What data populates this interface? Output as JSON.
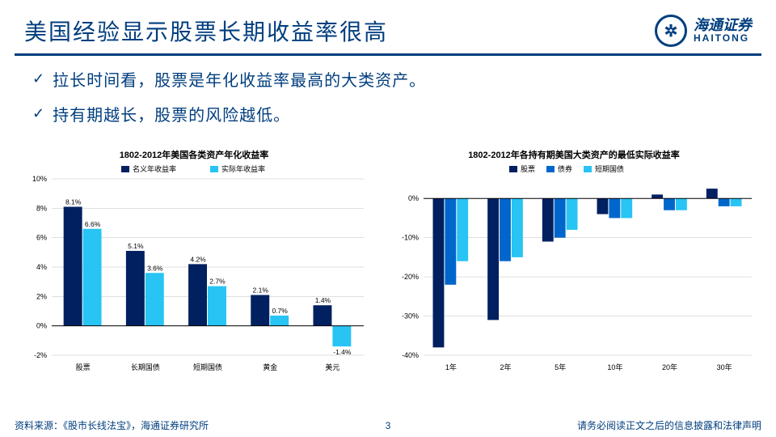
{
  "title": "美国经验显示股票长期收益率很高",
  "logo": {
    "cn": "海通证券",
    "en": "HAITONG"
  },
  "bullets": [
    "拉长时间看，股票是年化收益率最高的大类资产。",
    "持有期越长，股票的风险越低。"
  ],
  "footer": {
    "source": "资料来源：《股市长线法宝》，海通证券研究所",
    "page": "3",
    "disclaimer": "请务必阅读正文之后的信息披露和法律声明"
  },
  "chart1": {
    "type": "grouped-bar",
    "title": "1802-2012年美国各类资产年化收益率",
    "title_fontsize": 11,
    "categories": [
      "股票",
      "长期国债",
      "短期国债",
      "黄金",
      "美元"
    ],
    "series": [
      {
        "name": "名义年收益率",
        "color": "#002060",
        "values": [
          8.1,
          5.1,
          4.2,
          2.1,
          1.4
        ],
        "labels": [
          "8.1%",
          "5.1%",
          "4.2%",
          "2.1%",
          "1.4%"
        ]
      },
      {
        "name": "实际年收益率",
        "color": "#27c4f4",
        "values": [
          6.6,
          3.6,
          2.7,
          0.7,
          -1.4
        ],
        "labels": [
          "6.6%",
          "3.6%",
          "2.7%",
          "0.7%",
          "-1.4%"
        ]
      }
    ],
    "ylim": [
      -2,
      10
    ],
    "ytick_step": 2,
    "y_format": "%",
    "grid_color": "#bfbfbf",
    "axis_color": "#000000",
    "label_fontsize": 9,
    "bar_group_width": 0.62
  },
  "chart2": {
    "type": "grouped-bar",
    "title": "1802-2012年各持有期美国大类资产的最低实际收益率",
    "title_fontsize": 11,
    "categories": [
      "1年",
      "2年",
      "5年",
      "10年",
      "20年",
      "30年"
    ],
    "series": [
      {
        "name": "股票",
        "color": "#002060",
        "values": [
          -38,
          -31,
          -11,
          -4,
          1,
          2.5
        ]
      },
      {
        "name": "债券",
        "color": "#0066cc",
        "values": [
          -22,
          -16,
          -10,
          -5,
          -3,
          -2
        ]
      },
      {
        "name": "短期国债",
        "color": "#27c4f4",
        "values": [
          -16,
          -15,
          -8,
          -5,
          -3,
          -2
        ]
      }
    ],
    "ylim": [
      -40,
      5
    ],
    "ytick_step": 10,
    "y_start": -40,
    "y_end": 0,
    "y_format": "%",
    "grid_color": "#bfbfbf",
    "axis_color": "#000000",
    "label_fontsize": 9,
    "bar_group_width": 0.66
  }
}
